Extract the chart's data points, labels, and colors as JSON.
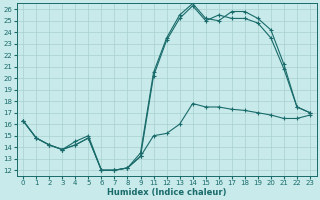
{
  "xlabel": "Humidex (Indice chaleur)",
  "background_color": "#c8eaea",
  "grid_color": "#a8d0d0",
  "line_color": "#1a6b6b",
  "ylim": [
    11.5,
    26.5
  ],
  "yticks": [
    12,
    13,
    14,
    15,
    16,
    17,
    18,
    19,
    20,
    21,
    22,
    23,
    24,
    25,
    26
  ],
  "xtick_labels": [
    "0",
    "1",
    "2",
    "3",
    "4",
    "5",
    "6",
    "7",
    "8",
    "9",
    "11",
    "12",
    "13",
    "14",
    "15",
    "16",
    "17",
    "18",
    "19",
    "20",
    "21",
    "22",
    "23"
  ],
  "line1_y": [
    16.3,
    14.8,
    14.2,
    13.8,
    14.2,
    14.8,
    12.0,
    12.0,
    12.2,
    13.2,
    15.0,
    15.2,
    16.0,
    17.8,
    17.5,
    17.5,
    17.3,
    17.2,
    17.0,
    16.8,
    16.5,
    16.5,
    16.8
  ],
  "line2_y": [
    16.3,
    14.8,
    14.2,
    13.8,
    14.2,
    14.8,
    12.0,
    12.0,
    12.2,
    13.2,
    20.2,
    23.3,
    25.2,
    26.3,
    25.0,
    25.5,
    25.2,
    25.2,
    24.8,
    23.5,
    20.8,
    17.5,
    17.0
  ],
  "line3_y": [
    16.3,
    14.8,
    14.2,
    13.8,
    14.5,
    15.0,
    12.0,
    12.0,
    12.2,
    13.5,
    20.5,
    23.5,
    25.5,
    26.5,
    25.2,
    25.0,
    25.8,
    25.8,
    25.2,
    24.2,
    21.2,
    17.5,
    17.0
  ]
}
